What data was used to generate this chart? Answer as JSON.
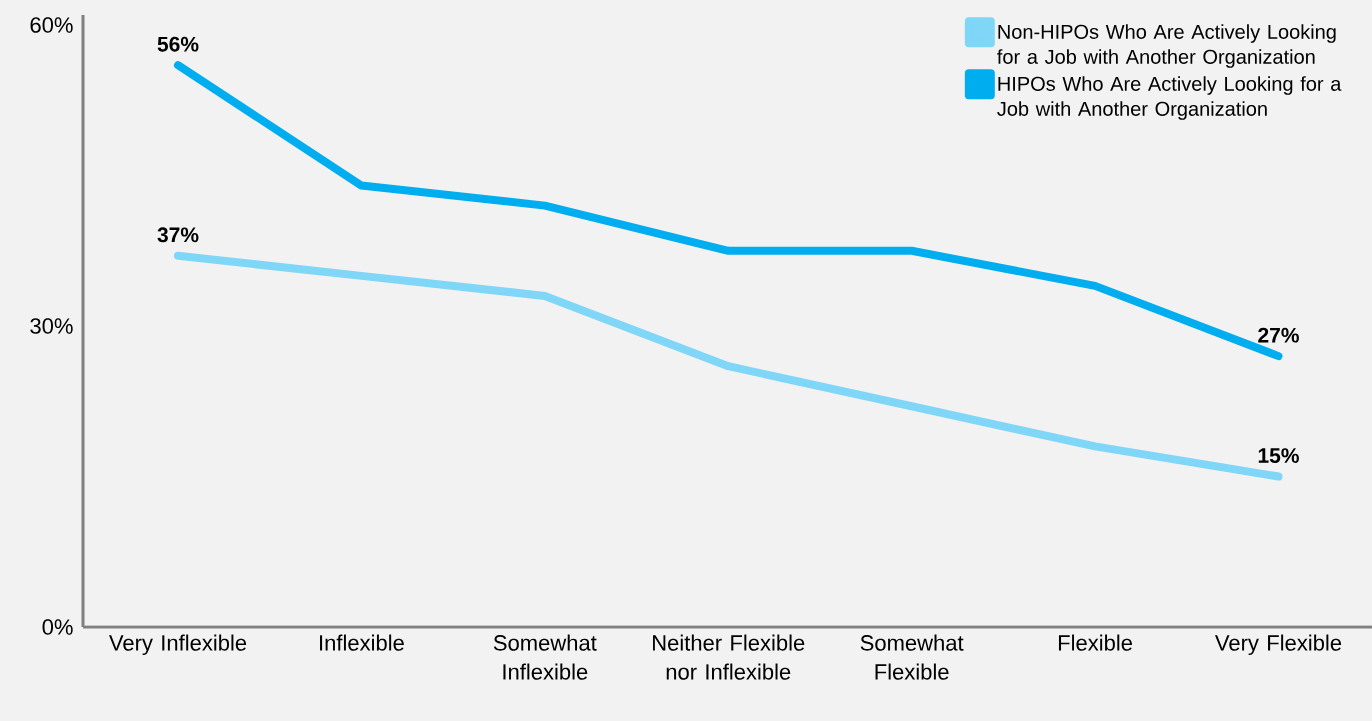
{
  "chart_data": {
    "type": "line",
    "categories": [
      "Very Inflexible",
      "Inflexible",
      "Somewhat Inflexible",
      "Neither Flexible nor Inflexible",
      "Somewhat Flexible",
      "Flexible",
      "Very Flexible"
    ],
    "series": [
      {
        "name": "Non-HIPOs Who Are Actively Looking for a Job with Another Organization",
        "color": "#7fd6f7",
        "values": [
          37,
          35,
          33,
          26,
          22,
          18,
          15
        ],
        "value_labels": [
          "37%",
          null,
          null,
          null,
          null,
          null,
          "15%"
        ]
      },
      {
        "name": "HIPOs Who Are Actively Looking for a Job with Another Organization",
        "color": "#00aeef",
        "values": [
          56,
          44,
          42,
          37.5,
          37.5,
          34,
          27
        ],
        "value_labels": [
          "56%",
          null,
          null,
          null,
          null,
          null,
          "27%"
        ]
      }
    ],
    "ylim": [
      0,
      61
    ],
    "yticks": [
      {
        "value": 0,
        "label": "0%"
      },
      {
        "value": 30,
        "label": "30%"
      },
      {
        "value": 60,
        "label": "60%"
      }
    ],
    "grid": false,
    "legend": "top right",
    "marker": "none",
    "line_style": "solid"
  }
}
